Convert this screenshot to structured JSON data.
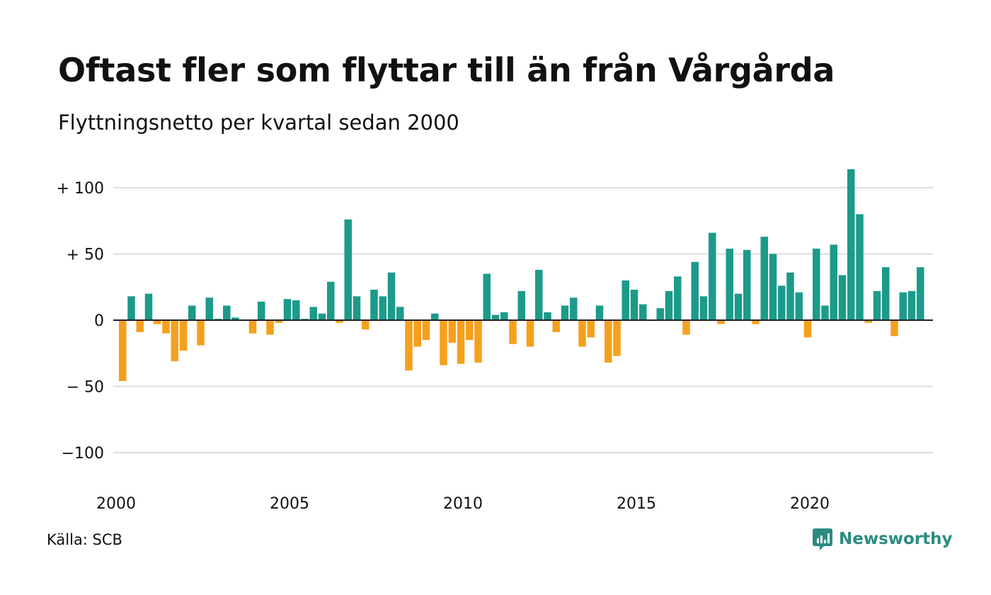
{
  "title": "Oftast fler som flyttar till än från Vårgårda",
  "subtitle": "Flyttningsnetto per kvartal sedan 2000",
  "source": "Källa: SCB",
  "brand": {
    "name": "Newsworthy",
    "icon": "newsworthy-logo-icon"
  },
  "colors": {
    "positive": "#1c9a8a",
    "negative": "#f5a01d",
    "grid": "#dddddd",
    "zero_line": "#222222",
    "brand": "#2a8c80"
  },
  "chart_data": {
    "type": "bar",
    "x_start": 2000,
    "periods_per_year": 4,
    "ylim": [
      -120,
      120
    ],
    "grid": true,
    "y_ticks": [
      {
        "value": 100,
        "label": "+ 100"
      },
      {
        "value": 50,
        "label": "+  50"
      },
      {
        "value": 0,
        "label": "0"
      },
      {
        "value": -50,
        "label": "− 50"
      },
      {
        "value": -100,
        "label": "−100"
      }
    ],
    "x_ticks": [
      {
        "value": 2000,
        "label": "2000"
      },
      {
        "value": 2005,
        "label": "2005"
      },
      {
        "value": 2010,
        "label": "2010"
      },
      {
        "value": 2015,
        "label": "2015"
      },
      {
        "value": 2020,
        "label": "2020"
      }
    ],
    "values": [
      -46,
      18,
      -9,
      20,
      -3,
      -10,
      -31,
      -23,
      11,
      -19,
      17,
      1,
      11,
      2,
      0,
      -10,
      14,
      -11,
      -2,
      16,
      15,
      1,
      10,
      5,
      29,
      -2,
      76,
      18,
      -7,
      23,
      18,
      36,
      10,
      -38,
      -20,
      -15,
      5,
      -34,
      -17,
      -33,
      -15,
      -32,
      35,
      4,
      6,
      -18,
      22,
      -20,
      38,
      6,
      -9,
      11,
      17,
      -20,
      -13,
      11,
      -32,
      -27,
      30,
      23,
      12,
      0,
      9,
      22,
      33,
      -11,
      44,
      18,
      66,
      -3,
      54,
      20,
      53,
      -3,
      63,
      50,
      26,
      36,
      21,
      -13,
      54,
      11,
      57,
      34,
      114,
      80,
      -2,
      22,
      40,
      -12,
      21,
      22,
      40
    ]
  }
}
